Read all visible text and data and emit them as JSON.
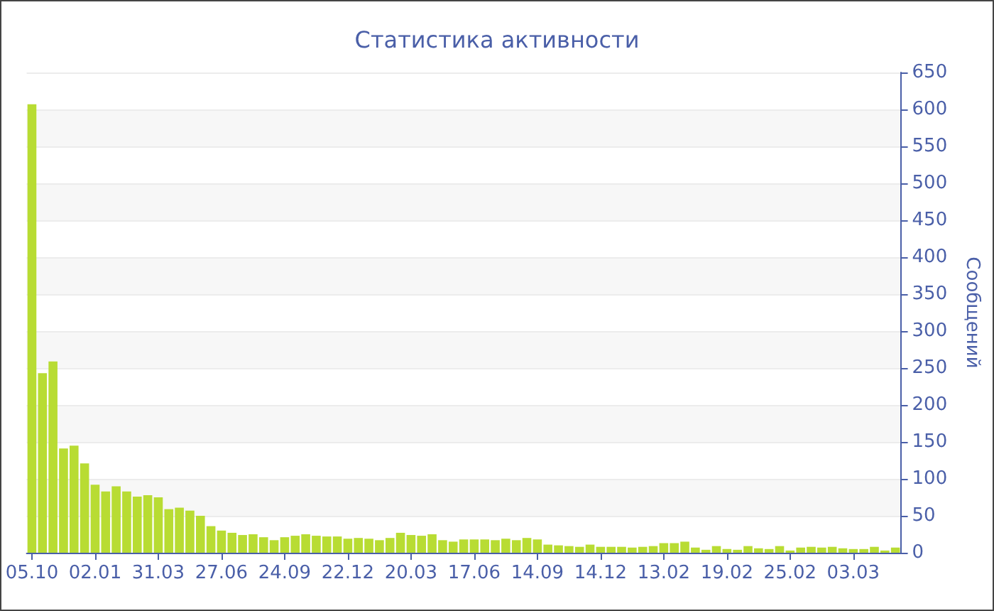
{
  "chart_data": {
    "type": "bar",
    "title": "Статистика активности",
    "ylabel": "Сообщений",
    "categories": [
      "05.10",
      null,
      null,
      null,
      null,
      null,
      "02.01",
      null,
      null,
      null,
      null,
      null,
      "31.03",
      null,
      null,
      null,
      null,
      null,
      "27.06",
      null,
      null,
      null,
      null,
      null,
      "24.09",
      null,
      null,
      null,
      null,
      null,
      "22.12",
      null,
      null,
      null,
      null,
      null,
      "20.03",
      null,
      null,
      null,
      null,
      null,
      "17.06",
      null,
      null,
      null,
      null,
      null,
      "14.09",
      null,
      null,
      null,
      null,
      null,
      "14.12",
      null,
      null,
      null,
      null,
      null,
      "13.02",
      null,
      null,
      null,
      null,
      null,
      "19.02",
      null,
      null,
      null,
      null,
      null,
      "25.02",
      null,
      null,
      null,
      null,
      null,
      "03.03",
      null,
      null,
      null,
      null
    ],
    "values": [
      607,
      243,
      259,
      141,
      145,
      121,
      92,
      83,
      90,
      83,
      76,
      78,
      75,
      59,
      61,
      57,
      50,
      36,
      30,
      27,
      24,
      25,
      21,
      17,
      21,
      23,
      25,
      23,
      22,
      22,
      19,
      20,
      19,
      17,
      20,
      27,
      24,
      23,
      25,
      17,
      15,
      18,
      18,
      18,
      17,
      19,
      17,
      20,
      18,
      11,
      10,
      9,
      8,
      11,
      8,
      8,
      8,
      7,
      8,
      9,
      13,
      13,
      15,
      7,
      4,
      9,
      5,
      4,
      9,
      6,
      5,
      9,
      3,
      7,
      8,
      7,
      8,
      6,
      5,
      5,
      8,
      3,
      7
    ],
    "color": "#b8dc33",
    "ylim": [
      0,
      650
    ],
    "yticks": [
      0,
      50,
      100,
      150,
      200,
      250,
      300,
      350,
      400,
      450,
      500,
      550,
      600,
      650
    ],
    "grid": "y"
  }
}
